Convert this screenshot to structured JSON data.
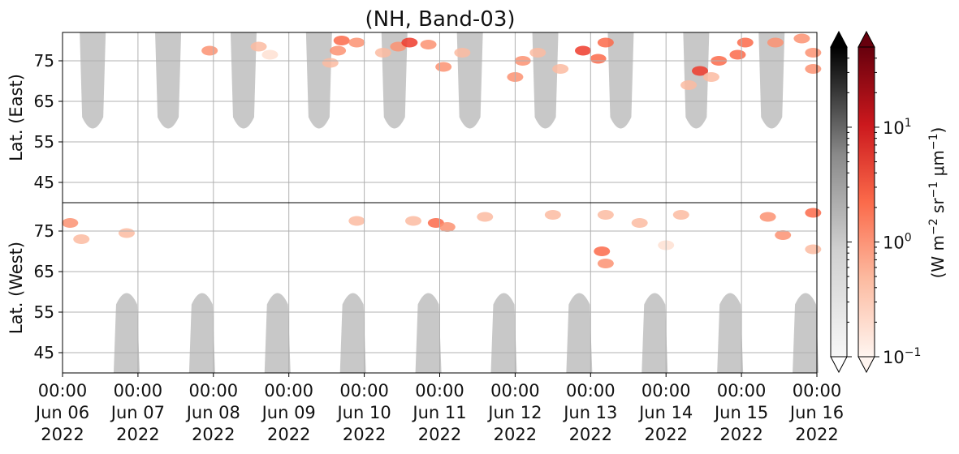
{
  "chart_data": {
    "type": "heatmap",
    "title": "(NH, Band-03)",
    "panels": [
      {
        "ylabel": "Lat. (East)",
        "yticks": [
          45,
          55,
          65,
          75
        ],
        "ylim": [
          40,
          82
        ],
        "orientation": "normal"
      },
      {
        "ylabel": "Lat. (West)",
        "yticks": [
          75,
          65,
          55,
          45
        ],
        "ylim": [
          82,
          40
        ],
        "orientation": "inverted"
      }
    ],
    "x_ticks": [
      {
        "time": "00:00",
        "date": "Jun 06",
        "year": "2022"
      },
      {
        "time": "00:00",
        "date": "Jun 07",
        "year": "2022"
      },
      {
        "time": "00:00",
        "date": "Jun 08",
        "year": "2022"
      },
      {
        "time": "00:00",
        "date": "Jun 09",
        "year": "2022"
      },
      {
        "time": "00:00",
        "date": "Jun 10",
        "year": "2022"
      },
      {
        "time": "00:00",
        "date": "Jun 11",
        "year": "2022"
      },
      {
        "time": "00:00",
        "date": "Jun 12",
        "year": "2022"
      },
      {
        "time": "00:00",
        "date": "Jun 13",
        "year": "2022"
      },
      {
        "time": "00:00",
        "date": "Jun 14",
        "year": "2022"
      },
      {
        "time": "00:00",
        "date": "Jun 15",
        "year": "2022"
      },
      {
        "time": "00:00",
        "date": "Jun 16",
        "year": "2022"
      }
    ],
    "colorbars": [
      {
        "name": "gray",
        "scale": "log",
        "range": [
          0.1,
          50
        ],
        "extend": "both"
      },
      {
        "name": "reds",
        "scale": "log",
        "range": [
          0.1,
          50
        ],
        "extend": "both",
        "tick_labels": [
          {
            "base": "10",
            "exp": "1",
            "value": 10
          },
          {
            "base": "10",
            "exp": "0",
            "value": 1
          },
          {
            "base": "10",
            "exp": "−1",
            "value": 0.1
          }
        ]
      }
    ],
    "colorbar_label": {
      "main": "(W m",
      "e1": "−2",
      "mid1": " sr",
      "e2": "−1",
      "mid2": " μm",
      "e3": "−1",
      "end": ")"
    },
    "grid": true,
    "daylight_mask_color": "#c8c8c8",
    "emission_colors": [
      "#fee0d2",
      "#fcbba1",
      "#fc9272",
      "#fb6a4a",
      "#ef3b2c"
    ],
    "east_emission_blobs": [
      {
        "day": 1.95,
        "lat": 77.5,
        "value": 1.0
      },
      {
        "day": 2.6,
        "lat": 78.5,
        "value": 0.5
      },
      {
        "day": 2.75,
        "lat": 76.5,
        "value": 0.4
      },
      {
        "day": 3.55,
        "lat": 74.5,
        "value": 0.5
      },
      {
        "day": 3.65,
        "lat": 77.5,
        "value": 1.0
      },
      {
        "day": 3.7,
        "lat": 80.0,
        "value": 1.5
      },
      {
        "day": 3.9,
        "lat": 79.5,
        "value": 1.2
      },
      {
        "day": 4.25,
        "lat": 77.0,
        "value": 0.7
      },
      {
        "day": 4.45,
        "lat": 78.5,
        "value": 1.2
      },
      {
        "day": 4.6,
        "lat": 79.5,
        "value": 2.5
      },
      {
        "day": 4.85,
        "lat": 79.0,
        "value": 1.3
      },
      {
        "day": 5.05,
        "lat": 73.5,
        "value": 1.0
      },
      {
        "day": 5.3,
        "lat": 77.0,
        "value": 0.7
      },
      {
        "day": 6.0,
        "lat": 71.0,
        "value": 1.0
      },
      {
        "day": 6.1,
        "lat": 75.0,
        "value": 1.0
      },
      {
        "day": 6.3,
        "lat": 77.0,
        "value": 0.8
      },
      {
        "day": 6.9,
        "lat": 77.5,
        "value": 3.0
      },
      {
        "day": 7.1,
        "lat": 75.5,
        "value": 2.0
      },
      {
        "day": 7.2,
        "lat": 79.5,
        "value": 2.0
      },
      {
        "day": 6.6,
        "lat": 73.0,
        "value": 0.6
      },
      {
        "day": 8.3,
        "lat": 69.0,
        "value": 0.6
      },
      {
        "day": 8.45,
        "lat": 72.5,
        "value": 2.5
      },
      {
        "day": 8.6,
        "lat": 71.0,
        "value": 0.8
      },
      {
        "day": 8.7,
        "lat": 75.0,
        "value": 2.0
      },
      {
        "day": 8.95,
        "lat": 76.5,
        "value": 1.5
      },
      {
        "day": 9.05,
        "lat": 79.5,
        "value": 2.0
      },
      {
        "day": 9.45,
        "lat": 79.5,
        "value": 1.3
      },
      {
        "day": 9.8,
        "lat": 80.5,
        "value": 1.0
      },
      {
        "day": 9.95,
        "lat": 73.0,
        "value": 1.0
      },
      {
        "day": 9.95,
        "lat": 77.0,
        "value": 1.0
      }
    ],
    "west_emission_blobs": [
      {
        "day": 0.1,
        "lat": 77.0,
        "value": 1.2
      },
      {
        "day": 0.25,
        "lat": 73.0,
        "value": 0.8
      },
      {
        "day": 0.85,
        "lat": 74.5,
        "value": 0.6
      },
      {
        "day": 3.9,
        "lat": 77.5,
        "value": 0.5
      },
      {
        "day": 4.65,
        "lat": 77.5,
        "value": 0.7
      },
      {
        "day": 4.95,
        "lat": 77.0,
        "value": 1.5
      },
      {
        "day": 5.1,
        "lat": 76.0,
        "value": 1.0
      },
      {
        "day": 5.6,
        "lat": 78.5,
        "value": 0.6
      },
      {
        "day": 6.5,
        "lat": 79.0,
        "value": 0.5
      },
      {
        "day": 7.2,
        "lat": 79.0,
        "value": 0.7
      },
      {
        "day": 7.15,
        "lat": 70.0,
        "value": 1.5
      },
      {
        "day": 7.2,
        "lat": 67.0,
        "value": 1.0
      },
      {
        "day": 7.65,
        "lat": 77.0,
        "value": 0.5
      },
      {
        "day": 8.0,
        "lat": 71.5,
        "value": 0.4
      },
      {
        "day": 8.2,
        "lat": 79.0,
        "value": 0.7
      },
      {
        "day": 9.35,
        "lat": 78.5,
        "value": 1.0
      },
      {
        "day": 9.55,
        "lat": 74.0,
        "value": 1.0
      },
      {
        "day": 9.95,
        "lat": 79.5,
        "value": 1.5
      },
      {
        "day": 9.95,
        "lat": 70.5,
        "value": 0.8
      }
    ]
  }
}
